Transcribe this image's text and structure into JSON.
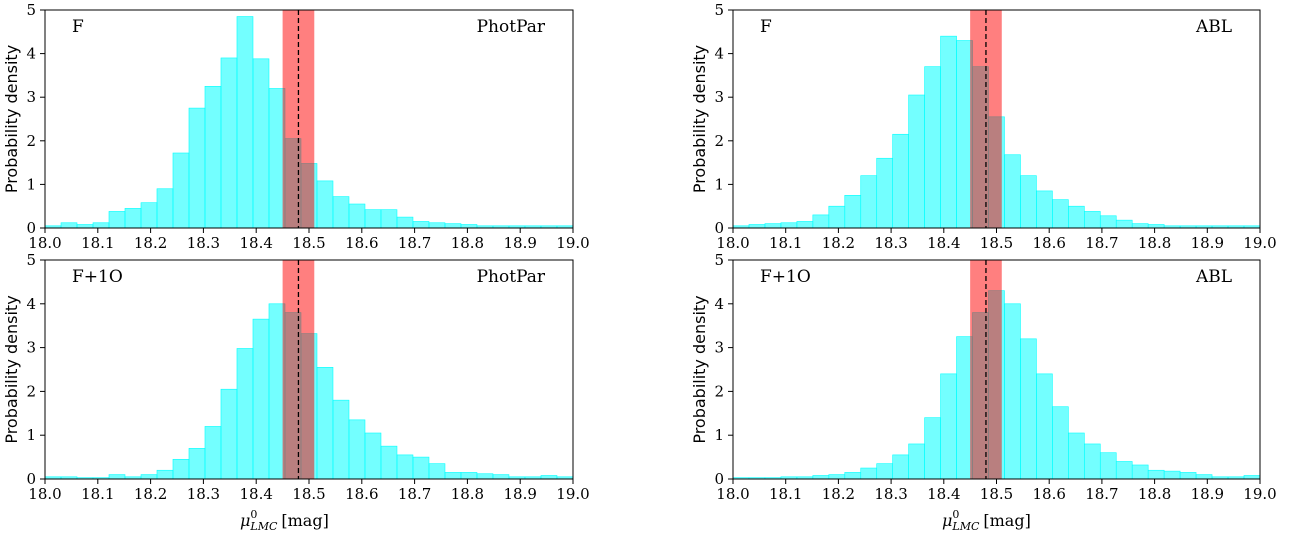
{
  "figure": {
    "colors": {
      "hist": "#00FFFF",
      "band": "#FF0000",
      "refline": "#000000"
    }
  },
  "chart_data": [
    {
      "type": "bar",
      "label_left": "F",
      "label_right": "PhotPar",
      "ylabel": "Probability density",
      "xlabel": "",
      "xlim": [
        18.0,
        19.0
      ],
      "ylim": [
        0,
        5
      ],
      "xticks": [
        "18.0",
        "18.1",
        "18.2",
        "18.3",
        "18.4",
        "18.5",
        "18.6",
        "18.7",
        "18.8",
        "18.9",
        "19.0"
      ],
      "yticks": [
        "0",
        "1",
        "2",
        "3",
        "4",
        "5"
      ],
      "bin_edges_start": 18.0,
      "bin_width": 0.0303,
      "values": [
        0.05,
        0.12,
        0.08,
        0.12,
        0.38,
        0.45,
        0.58,
        0.9,
        1.72,
        2.75,
        3.25,
        3.9,
        4.85,
        3.88,
        3.2,
        2.05,
        1.48,
        1.08,
        0.72,
        0.55,
        0.42,
        0.42,
        0.25,
        0.15,
        0.12,
        0.1,
        0.08,
        0.05,
        0.05,
        0.05,
        0.05,
        0.05,
        0.05
      ],
      "band": [
        18.45,
        18.51
      ],
      "refline": 18.48
    },
    {
      "type": "bar",
      "label_left": "F",
      "label_right": "ABL",
      "ylabel": "Probability density",
      "xlabel": "",
      "xlim": [
        18.0,
        19.0
      ],
      "ylim": [
        0,
        5
      ],
      "xticks": [
        "18.0",
        "18.1",
        "18.2",
        "18.3",
        "18.4",
        "18.5",
        "18.6",
        "18.7",
        "18.8",
        "18.9",
        "19.0"
      ],
      "yticks": [
        "0",
        "1",
        "2",
        "3",
        "4",
        "5"
      ],
      "bin_edges_start": 18.0,
      "bin_width": 0.0303,
      "values": [
        0.05,
        0.08,
        0.1,
        0.12,
        0.15,
        0.3,
        0.5,
        0.75,
        1.2,
        1.6,
        2.15,
        3.05,
        3.7,
        4.4,
        4.3,
        3.7,
        2.55,
        1.68,
        1.2,
        0.85,
        0.65,
        0.5,
        0.38,
        0.28,
        0.18,
        0.1,
        0.08,
        0.05,
        0.05,
        0.05,
        0.05,
        0.05,
        0.05
      ],
      "band": [
        18.45,
        18.51
      ],
      "refline": 18.48
    },
    {
      "type": "bar",
      "label_left": "F+1O",
      "label_right": "PhotPar",
      "ylabel": "Probability density",
      "xlabel": "",
      "xlim": [
        18.0,
        19.0
      ],
      "ylim": [
        0,
        5
      ],
      "xticks": [
        "18.0",
        "18.1",
        "18.2",
        "18.3",
        "18.4",
        "18.5",
        "18.6",
        "18.7",
        "18.8",
        "18.9",
        "19.0"
      ],
      "yticks": [
        "0",
        "1",
        "2",
        "3",
        "4",
        "5"
      ],
      "bin_edges_start": 18.0,
      "bin_width": 0.0303,
      "values": [
        0.05,
        0.05,
        0.03,
        0.03,
        0.1,
        0.05,
        0.1,
        0.2,
        0.45,
        0.7,
        1.2,
        2.05,
        2.98,
        3.65,
        4.0,
        3.8,
        3.32,
        2.55,
        1.8,
        1.35,
        1.05,
        0.75,
        0.55,
        0.5,
        0.35,
        0.15,
        0.15,
        0.12,
        0.1,
        0.05,
        0.05,
        0.08,
        0.05
      ],
      "band": [
        18.45,
        18.51
      ],
      "refline": 18.48
    },
    {
      "type": "bar",
      "label_left": "F+1O",
      "label_right": "ABL",
      "ylabel": "Probability density",
      "xlabel": "",
      "xlim": [
        18.0,
        19.0
      ],
      "ylim": [
        0,
        5
      ],
      "xticks": [
        "18.0",
        "18.1",
        "18.2",
        "18.3",
        "18.4",
        "18.5",
        "18.6",
        "18.7",
        "18.8",
        "18.9",
        "19.0"
      ],
      "yticks": [
        "0",
        "1",
        "2",
        "3",
        "4",
        "5"
      ],
      "bin_edges_start": 18.0,
      "bin_width": 0.0303,
      "values": [
        0.03,
        0.03,
        0.03,
        0.05,
        0.05,
        0.08,
        0.1,
        0.15,
        0.25,
        0.35,
        0.55,
        0.8,
        1.4,
        2.4,
        3.25,
        3.8,
        4.3,
        4.0,
        3.2,
        2.4,
        1.65,
        1.05,
        0.8,
        0.6,
        0.4,
        0.32,
        0.2,
        0.18,
        0.15,
        0.1,
        0.05,
        0.05,
        0.08
      ],
      "band": [
        18.45,
        18.51
      ],
      "refline": 18.48
    }
  ],
  "xlabel_bottom": "[mag]",
  "xlabel_symbol": "μ",
  "xlabel_sup": "0",
  "xlabel_sub": "LMC"
}
